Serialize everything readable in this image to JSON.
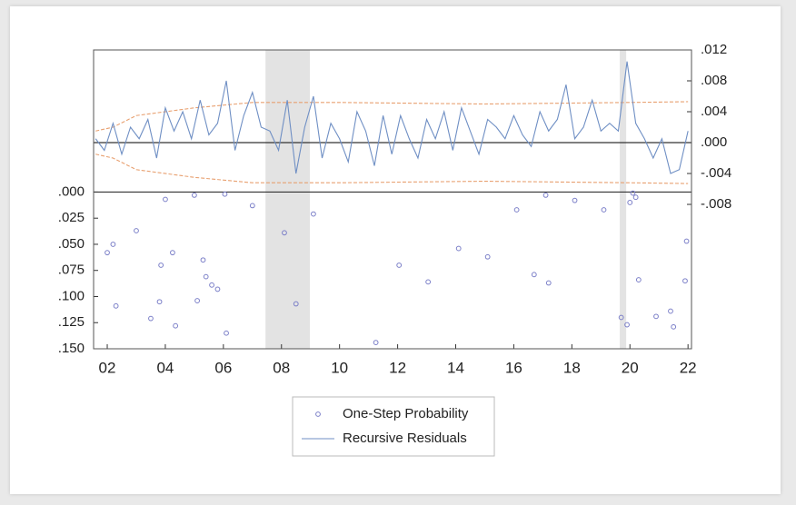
{
  "chart_data": {
    "type": "line",
    "xlim": [
      2001.53,
      2022.12
    ],
    "xticks": [
      {
        "value": 2002,
        "label": "02"
      },
      {
        "value": 2004,
        "label": "04"
      },
      {
        "value": 2006,
        "label": "06"
      },
      {
        "value": 2008,
        "label": "08"
      },
      {
        "value": 2010,
        "label": "10"
      },
      {
        "value": 2012,
        "label": "12"
      },
      {
        "value": 2014,
        "label": "14"
      },
      {
        "value": 2016,
        "label": "16"
      },
      {
        "value": 2018,
        "label": "18"
      },
      {
        "value": 2020,
        "label": "20"
      },
      {
        "value": 2022,
        "label": "22"
      }
    ],
    "ylim": [
      0.15,
      -0.136
    ],
    "yticks": [
      {
        "value": 0,
        "label": ".000"
      },
      {
        "value": 0.025,
        "label": ".025"
      },
      {
        "value": 0.05,
        "label": ".050"
      },
      {
        "value": 0.075,
        "label": ".075"
      },
      {
        "value": 0.1,
        "label": ".100"
      },
      {
        "value": 0.125,
        "label": ".125"
      },
      {
        "value": 0.15,
        "label": ".150"
      }
    ],
    "y2lim": [
      -0.0267,
      0.012
    ],
    "y2ticks": [
      {
        "value": 0.012,
        "label": ".012"
      },
      {
        "value": 0.008,
        "label": ".008"
      },
      {
        "value": 0.004,
        "label": ".004"
      },
      {
        "value": 0,
        "label": ".000"
      },
      {
        "value": -0.004,
        "label": "-.004"
      },
      {
        "value": -0.008,
        "label": "-.008"
      }
    ],
    "shaded": [
      [
        2007.45,
        2008.98
      ],
      [
        2019.65,
        2019.87
      ]
    ],
    "shade_color": "#e3e3e3",
    "band_color": "#e8a070",
    "band_x": [
      2001.6,
      2002.2,
      2003.0,
      2005.0,
      2007.0,
      2010.0,
      2015.0,
      2020.0,
      2022.0
    ],
    "band_upper": [
      0.0015,
      0.002,
      0.0035,
      0.0045,
      0.0052,
      0.0052,
      0.005,
      0.0052,
      0.0053
    ],
    "band_lower": [
      -0.0015,
      -0.002,
      -0.0035,
      -0.0045,
      -0.0052,
      -0.0052,
      -0.005,
      -0.0052,
      -0.0053
    ],
    "series": [
      {
        "name": "One-Step Probability",
        "style": "markers",
        "axis": "y",
        "color": "#7b7fc8",
        "x": [
          2002.0,
          2002.2,
          2002.3,
          2003.0,
          2003.5,
          2003.8,
          2003.85,
          2004.0,
          2004.25,
          2004.35,
          2005.0,
          2005.1,
          2005.3,
          2005.4,
          2005.6,
          2005.8,
          2006.05,
          2006.1,
          2007.0,
          2008.1,
          2008.5,
          2009.1,
          2011.25,
          2012.05,
          2013.05,
          2014.1,
          2015.1,
          2016.1,
          2016.7,
          2017.1,
          2017.2,
          2018.1,
          2019.1,
          2019.7,
          2019.9,
          2020.0,
          2020.1,
          2020.2,
          2020.3,
          2020.9,
          2021.4,
          2021.5,
          2021.9,
          2021.95
        ],
        "values": [
          0.058,
          0.05,
          0.109,
          0.037,
          0.121,
          0.105,
          0.07,
          0.007,
          0.058,
          0.128,
          0.003,
          0.104,
          0.065,
          0.081,
          0.089,
          0.093,
          0.002,
          0.135,
          0.013,
          0.039,
          0.107,
          0.021,
          0.144,
          0.07,
          0.086,
          0.054,
          0.062,
          0.017,
          0.079,
          0.003,
          0.087,
          0.008,
          0.017,
          0.12,
          0.127,
          0.01,
          0.001,
          0.005,
          0.084,
          0.119,
          0.114,
          0.129,
          0.085,
          0.047
        ]
      },
      {
        "name": "Recursive Residuals",
        "style": "line",
        "axis": "y2",
        "color": "#6f8fc4",
        "x": [
          2001.6,
          2001.9,
          2002.2,
          2002.5,
          2002.8,
          2003.1,
          2003.4,
          2003.7,
          2004.0,
          2004.3,
          2004.6,
          2004.9,
          2005.2,
          2005.5,
          2005.8,
          2006.1,
          2006.4,
          2006.7,
          2007.0,
          2007.3,
          2007.6,
          2007.9,
          2008.2,
          2008.5,
          2008.8,
          2009.1,
          2009.4,
          2009.7,
          2010.0,
          2010.3,
          2010.6,
          2010.9,
          2011.2,
          2011.5,
          2011.8,
          2012.1,
          2012.4,
          2012.7,
          2013.0,
          2013.3,
          2013.6,
          2013.9,
          2014.2,
          2014.5,
          2014.8,
          2015.1,
          2015.4,
          2015.7,
          2016.0,
          2016.3,
          2016.6,
          2016.9,
          2017.2,
          2017.5,
          2017.8,
          2018.1,
          2018.4,
          2018.7,
          2019.0,
          2019.3,
          2019.6,
          2019.9,
          2020.2,
          2020.5,
          2020.8,
          2021.1,
          2021.4,
          2021.7,
          2022.0
        ],
        "values": [
          0.0005,
          -0.001,
          0.0025,
          -0.0015,
          0.002,
          0.0005,
          0.003,
          -0.002,
          0.0045,
          0.0015,
          0.004,
          0.0005,
          0.0055,
          0.001,
          0.0025,
          0.008,
          -0.001,
          0.0035,
          0.0065,
          0.002,
          0.0015,
          -0.001,
          0.0055,
          -0.004,
          0.002,
          0.006,
          -0.002,
          0.0025,
          0.0005,
          -0.0025,
          0.004,
          0.0015,
          -0.003,
          0.0035,
          -0.0015,
          0.0035,
          0.0005,
          -0.002,
          0.003,
          0.0005,
          0.004,
          -0.001,
          0.0045,
          0.0015,
          -0.0015,
          0.003,
          0.002,
          0.0005,
          0.0035,
          0.001,
          -0.0005,
          0.004,
          0.0015,
          0.003,
          0.0075,
          0.0005,
          0.002,
          0.0055,
          0.0015,
          0.0025,
          0.0015,
          0.0105,
          0.0025,
          0.0005,
          -0.002,
          0.0005,
          -0.004,
          -0.0035,
          0.0015
        ]
      }
    ]
  }
}
